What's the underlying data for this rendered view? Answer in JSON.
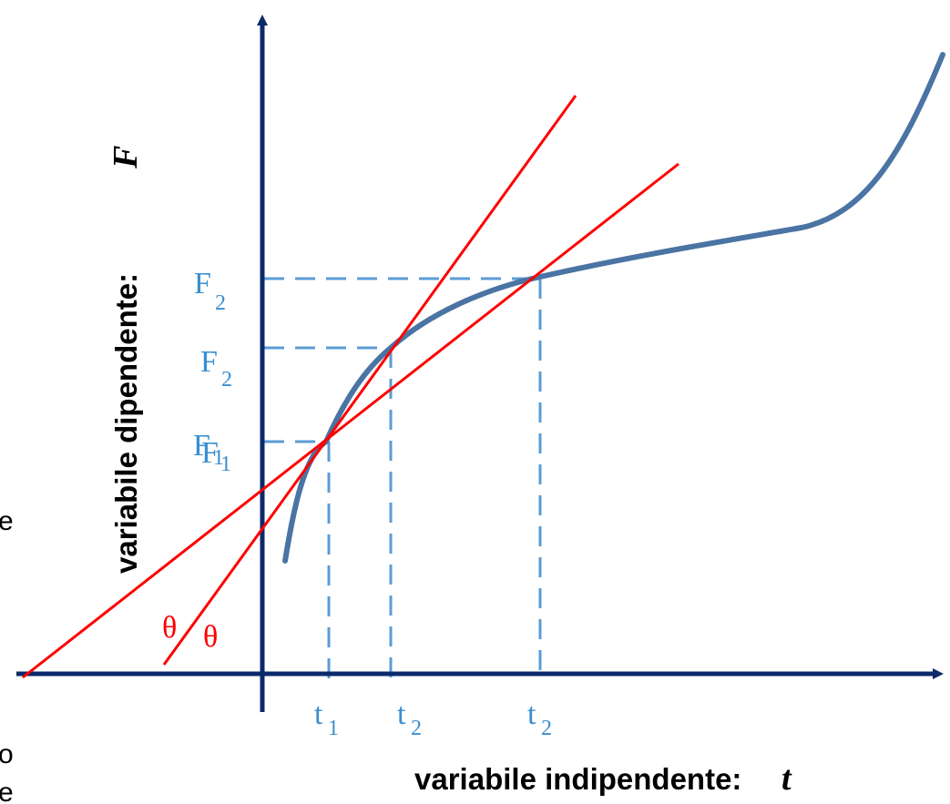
{
  "colors": {
    "axis": "#0b2a6b",
    "curve": "#4a74a3",
    "tangent": "#ff0000",
    "guide": "#5b9bd5",
    "tick_text": "#3a8fd0"
  },
  "y_axis": {
    "label": "variabile dipendente:",
    "symbol": "F"
  },
  "x_axis": {
    "label": "variabile indipendente:",
    "symbol": "t"
  },
  "ticks": {
    "t1": {
      "base": "t",
      "sub": "1"
    },
    "t2a": {
      "base": "t",
      "sub": "2"
    },
    "t2b": {
      "base": "t",
      "sub": "2"
    },
    "F2_top": {
      "base": "F",
      "sub": "2"
    },
    "F2_mid": {
      "base": "F",
      "sub": "2"
    },
    "F1a": {
      "base": "F",
      "sub": "1"
    },
    "F1b": {
      "base": "F",
      "sub": "1"
    }
  },
  "angles": [
    "θ",
    "θ"
  ],
  "cut_text": [
    "e",
    "o",
    "e"
  ]
}
